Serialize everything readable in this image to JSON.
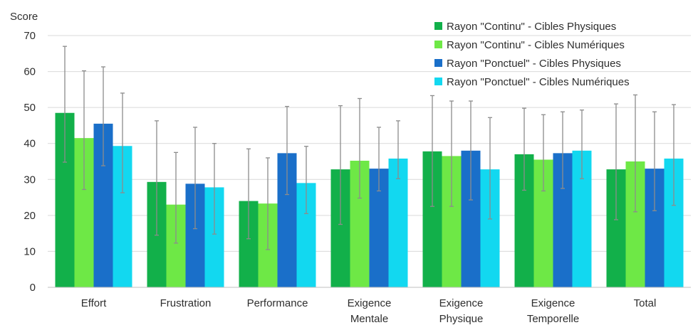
{
  "chart_data": {
    "type": "bar",
    "title": "",
    "ylabel": "Score",
    "xlabel": "",
    "ylim": [
      0,
      70
    ],
    "yticks": [
      0,
      10,
      20,
      30,
      40,
      50,
      60,
      70
    ],
    "grid": "horizontal",
    "legend_position": "top-right",
    "error_bars": true,
    "categories": [
      [
        "Effort"
      ],
      [
        "Frustration"
      ],
      [
        "Performance"
      ],
      [
        "Exigence",
        "Mentale"
      ],
      [
        "Exigence",
        "Physique"
      ],
      [
        "Exigence",
        "Temporelle"
      ],
      [
        "Total"
      ]
    ],
    "series": [
      {
        "name": "Rayon \"Continu\" - Cibles Physiques",
        "color": "#12b04a",
        "values": [
          48.5,
          29.3,
          24.0,
          32.8,
          37.8,
          37.0,
          32.8
        ],
        "error_low": [
          34.8,
          14.5,
          13.5,
          17.5,
          22.5,
          27.0,
          18.8
        ],
        "error_high": [
          67.0,
          46.3,
          38.5,
          50.5,
          53.3,
          49.8,
          51.0
        ]
      },
      {
        "name": "Rayon \"Continu\" - Cibles Numériques",
        "color": "#6ee846",
        "values": [
          41.5,
          23.0,
          23.3,
          35.2,
          36.5,
          35.5,
          35.0
        ],
        "error_low": [
          27.2,
          12.3,
          10.5,
          24.8,
          22.5,
          26.8,
          21.0
        ],
        "error_high": [
          60.2,
          37.5,
          36.0,
          52.5,
          51.8,
          48.0,
          53.5
        ]
      },
      {
        "name": "Rayon \"Ponctuel\" - Cibles Physiques",
        "color": "#1a6fc9",
        "values": [
          45.5,
          28.8,
          37.3,
          33.0,
          38.0,
          37.3,
          33.0
        ],
        "error_low": [
          33.8,
          16.3,
          25.8,
          26.8,
          24.3,
          27.5,
          21.3
        ],
        "error_high": [
          61.3,
          44.5,
          50.3,
          44.5,
          51.8,
          48.8,
          48.8
        ]
      },
      {
        "name": "Rayon \"Ponctuel\" - Cibles Numériques",
        "color": "#12d8f0",
        "values": [
          39.3,
          27.8,
          29.0,
          35.8,
          32.8,
          38.0,
          35.8
        ],
        "error_low": [
          26.3,
          14.8,
          20.5,
          30.2,
          19.0,
          30.2,
          22.8
        ],
        "error_high": [
          54.0,
          40.0,
          39.2,
          46.3,
          47.2,
          49.3,
          50.8
        ]
      }
    ]
  }
}
